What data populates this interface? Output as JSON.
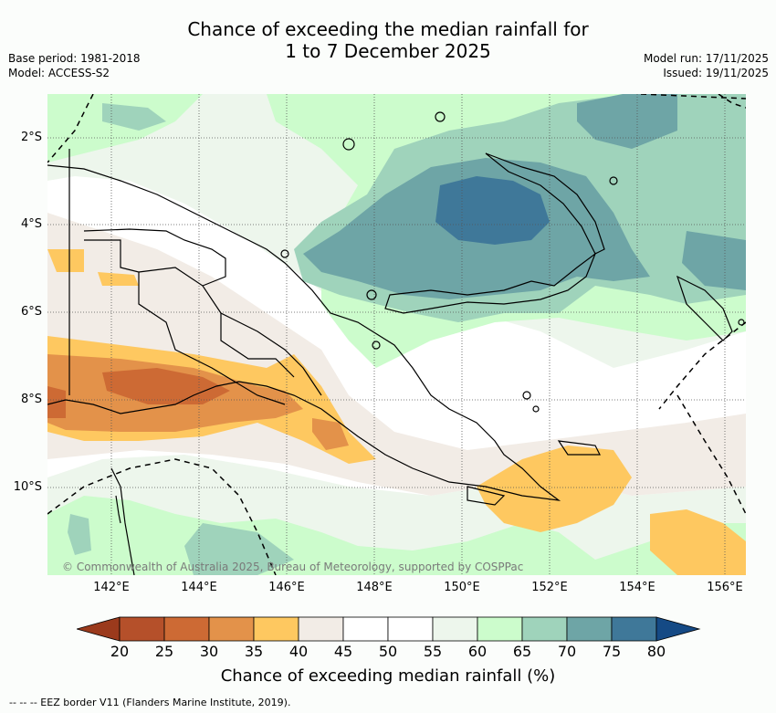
{
  "header": {
    "title_line1": "Chance of exceeding the median rainfall for",
    "title_line2": "1 to 7 December 2025",
    "base_period": "Base period: 1981-2018",
    "model": "Model: ACCESS-S2",
    "model_run": "Model run: 17/11/2025",
    "issued": "Issued: 19/11/2025"
  },
  "map": {
    "lat_labels": [
      "2°S",
      "4°S",
      "6°S",
      "8°S",
      "10°S"
    ],
    "lon_labels": [
      "142°E",
      "144°E",
      "146°E",
      "148°E",
      "150°E",
      "152°E",
      "154°E",
      "156°E"
    ],
    "credit": "© Commonwealth of Australia 2025, Bureau of Meteorology, supported by COSPPac"
  },
  "colorbar": {
    "ticks": [
      "20",
      "25",
      "30",
      "35",
      "40",
      "45",
      "50",
      "55",
      "60",
      "65",
      "70",
      "75",
      "80"
    ],
    "colors": [
      "#b5502a",
      "#cd6a34",
      "#e3924a",
      "#fec860",
      "#f2ece6",
      "#ffffff",
      "#ffffff",
      "#edf6ec",
      "#ccfccc",
      "#9fd3bb",
      "#6ea5a6",
      "#3f7899"
    ],
    "under_color": "#9b3a1c",
    "over_color": "#154a85",
    "title": "Chance of exceeding median rainfall (%)"
  },
  "legend": {
    "text": "--  --  -- EEZ border V11 (Flanders Marine Institute, 2019)."
  }
}
